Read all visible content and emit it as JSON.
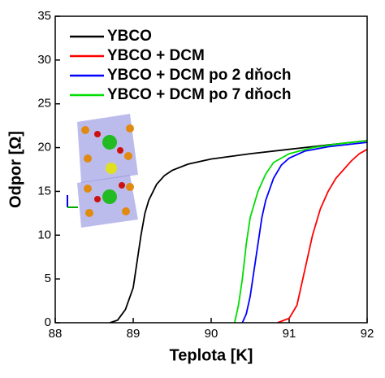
{
  "chart_data": {
    "type": "line",
    "xlabel": "Teplota [K]",
    "ylabel": "Odpor [Ω]",
    "xlim": [
      88,
      92
    ],
    "xticks": [
      88,
      89,
      90,
      91,
      92
    ],
    "ylim": [
      0,
      35
    ],
    "yticks": [
      0,
      5,
      10,
      15,
      20,
      25,
      30,
      35
    ],
    "legend": "upper left",
    "series": [
      {
        "name": "YBCO",
        "color": "#000000",
        "x": [
          88.7,
          88.8,
          88.9,
          89.0,
          89.05,
          89.1,
          89.15,
          89.2,
          89.3,
          89.4,
          89.5,
          89.7,
          90,
          90.5,
          91,
          91.5,
          92
        ],
        "values": [
          0,
          0.3,
          1.5,
          4,
          7,
          10,
          12.5,
          14,
          15.8,
          16.8,
          17.4,
          18.1,
          18.7,
          19.3,
          19.8,
          20.3,
          20.8
        ]
      },
      {
        "name": "YBCO + DCM",
        "color": "#ff0000",
        "x": [
          90.85,
          91.0,
          91.1,
          91.2,
          91.3,
          91.4,
          91.5,
          91.6,
          91.7,
          91.8,
          91.9,
          92
        ],
        "values": [
          0,
          0.5,
          2,
          6,
          10,
          13,
          15,
          16.5,
          17.5,
          18.5,
          19.3,
          19.8
        ]
      },
      {
        "name": "YBCO + DCM po 2 dňoch",
        "color": "#0000ff",
        "x": [
          90.4,
          90.45,
          90.5,
          90.55,
          90.6,
          90.65,
          90.7,
          90.8,
          90.9,
          91,
          91.2,
          91.5,
          92
        ],
        "values": [
          0,
          1,
          3,
          6,
          9,
          12,
          14,
          16.5,
          18,
          18.8,
          19.6,
          20.1,
          20.6
        ]
      },
      {
        "name": "YBCO + DCM po 7 dňoch",
        "color": "#00dd00",
        "x": [
          90.3,
          90.35,
          90.4,
          90.45,
          90.5,
          90.6,
          90.7,
          90.8,
          91,
          91.3,
          91.6,
          92
        ],
        "values": [
          0,
          2,
          5,
          9,
          12,
          15,
          17,
          18.3,
          19.3,
          20,
          20.4,
          20.8
        ]
      }
    ]
  }
}
